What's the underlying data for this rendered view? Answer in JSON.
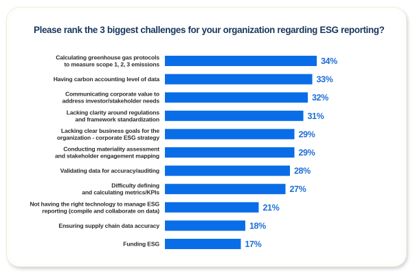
{
  "chart_data": {
    "type": "bar",
    "orientation": "horizontal",
    "title": "Please rank the 3 biggest challenges for your organization regarding ESG reporting?",
    "xlabel": "",
    "ylabel": "",
    "unit": "%",
    "xlim": [
      0,
      34
    ],
    "grid": false,
    "legend": "none",
    "bar_color": "#0a6de8",
    "value_label_color": "#1f6fd6",
    "title_color": "#17365d",
    "categories": [
      [
        "Calculating greenhouse gas protocols",
        "to measure scope 1, 2, 3 emissions"
      ],
      [
        "Having carbon accounting level of data"
      ],
      [
        "Communicating corporate value to",
        "address investor/stakeholder needs"
      ],
      [
        "Lacking clarity around regulations",
        "and framework standardization"
      ],
      [
        "Lacking clear business goals for the",
        "organization - corporate ESG strategy"
      ],
      [
        "Conducting materiality assessment",
        "and stakeholder engagement mapping"
      ],
      [
        "Validating data for accuracy/auditing"
      ],
      [
        "Difficulty defining",
        "and calculating metrics/KPIs"
      ],
      [
        "Not having the right technology to manage ESG",
        "reporting (compile and collaborate on data)"
      ],
      [
        "Ensuring supply chain data accuracy"
      ],
      [
        "Funding ESG"
      ]
    ],
    "values": [
      34,
      33,
      32,
      31,
      29,
      29,
      28,
      27,
      21,
      18,
      17
    ],
    "value_labels": [
      "34%",
      "33%",
      "32%",
      "31%",
      "29%",
      "29%",
      "28%",
      "27%",
      "21%",
      "18%",
      "17%"
    ]
  }
}
